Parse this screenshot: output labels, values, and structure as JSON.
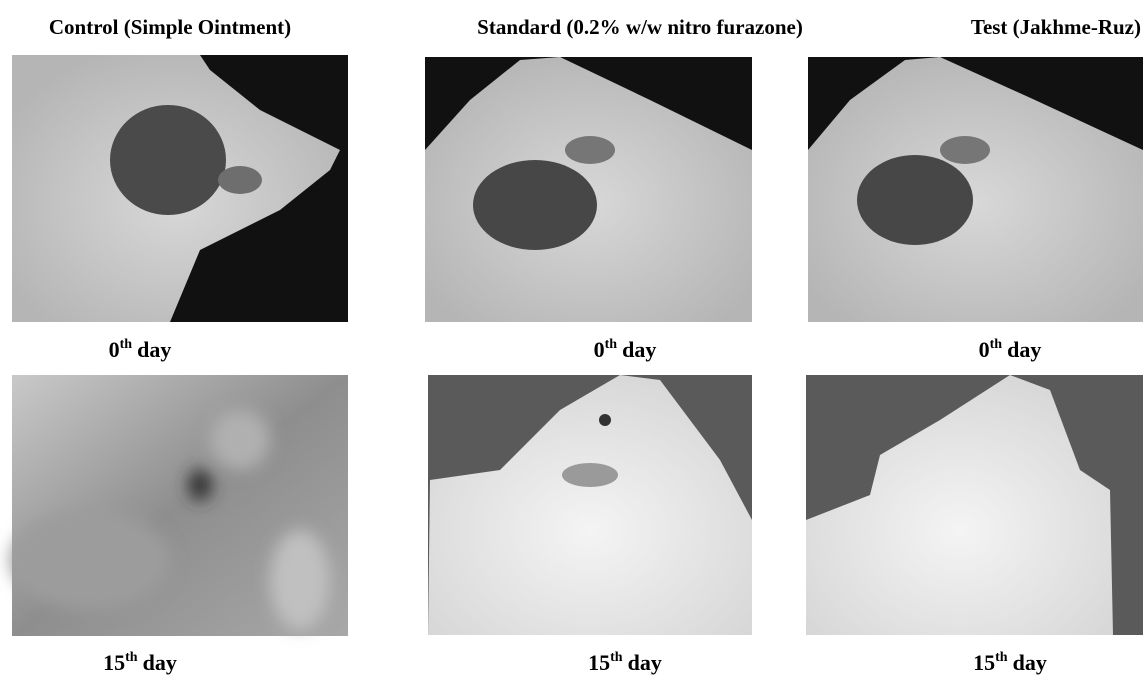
{
  "columns": [
    {
      "title": "Control (Simple Ointment)",
      "panels": [
        {
          "number": "0",
          "suffix": "th",
          "unit": "day"
        },
        {
          "number": "15",
          "suffix": "th",
          "unit": "day"
        }
      ]
    },
    {
      "title": "Standard (0.2% w/w nitro furazone)",
      "panels": [
        {
          "number": "0",
          "suffix": "th",
          "unit": "day"
        },
        {
          "number": "15",
          "suffix": "th",
          "unit": "day"
        }
      ]
    },
    {
      "title": "Test (Jakhme-Ruz)",
      "panels": [
        {
          "number": "0",
          "suffix": "th",
          "unit": "day"
        },
        {
          "number": "15",
          "suffix": "th",
          "unit": "day"
        }
      ]
    }
  ]
}
